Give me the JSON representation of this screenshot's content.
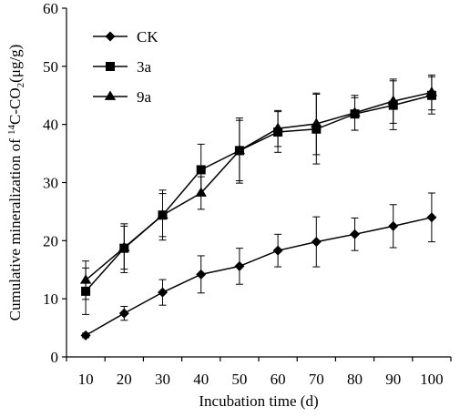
{
  "chart_data": {
    "type": "line",
    "xlabel": "Incubation time (d)",
    "ylabel": {
      "prefix": "Cumulative mineralization of ",
      "sup": "14",
      "mid": "C-CO",
      "sub": "2",
      "suffix": "(μg/g)"
    },
    "x": [
      10,
      20,
      30,
      40,
      50,
      60,
      70,
      80,
      90,
      100
    ],
    "xlim": [
      5,
      105
    ],
    "ylim": [
      0,
      60
    ],
    "x_ticks": [
      "10",
      "20",
      "30",
      "40",
      "50",
      "60",
      "70",
      "80",
      "90",
      "100"
    ],
    "y_ticks": [
      "0",
      "10",
      "20",
      "30",
      "40",
      "50",
      "60"
    ],
    "legend_position": "top-left",
    "grid": false,
    "series": [
      {
        "name": "CK",
        "marker": "diamond",
        "values": [
          3.7,
          7.5,
          11.1,
          14.2,
          15.6,
          18.3,
          19.8,
          21.1,
          22.5,
          24.0
        ],
        "errors": [
          0.4,
          1.2,
          2.2,
          3.2,
          3.1,
          2.8,
          4.3,
          2.8,
          3.7,
          4.2
        ]
      },
      {
        "name": "3a",
        "marker": "square",
        "values": [
          11.3,
          18.7,
          24.4,
          32.2,
          35.5,
          38.7,
          39.2,
          41.8,
          43.3,
          45.0
        ],
        "errors": [
          4.0,
          4.2,
          4.3,
          4.4,
          5.6,
          3.5,
          6.0,
          2.8,
          4.2,
          3.2
        ]
      },
      {
        "name": "9a",
        "marker": "triangle",
        "values": [
          13.2,
          18.8,
          24.4,
          28.2,
          35.5,
          39.3,
          40.1,
          42.0,
          44.0,
          45.5
        ],
        "errors": [
          3.3,
          3.7,
          3.7,
          2.8,
          5.2,
          3.1,
          5.3,
          3.0,
          3.8,
          3.0
        ]
      }
    ]
  }
}
